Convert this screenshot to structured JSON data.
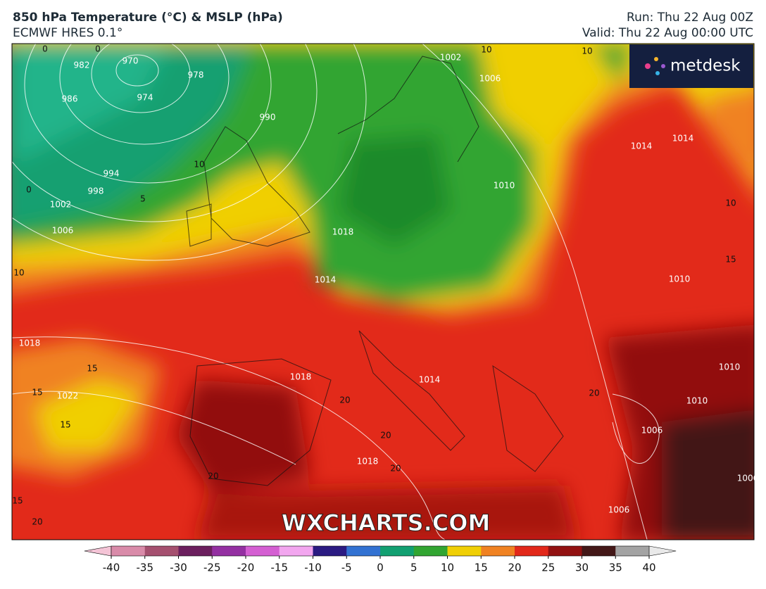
{
  "header": {
    "title": "850 hPa Temperature (°C) & MSLP (hPa)",
    "subtitle": "ECMWF HRES 0.1°",
    "run": "Run: Thu 22 Aug 00Z",
    "valid": "Valid: Thu 22 Aug 00:00 UTC"
  },
  "logo": "metdesk",
  "watermark": "WXCHARTS.COM",
  "isobar_labels": [
    "970",
    "974",
    "978",
    "982",
    "986",
    "990",
    "994",
    "998",
    "1002",
    "1006",
    "1002",
    "1006",
    "1010",
    "1014",
    "1018",
    "1014",
    "1010",
    "1018",
    "1022",
    "1018",
    "1014",
    "1018",
    "1010",
    "1010",
    "1006",
    "1006",
    "1006",
    "1014"
  ],
  "temperature_labels": [
    "0",
    "0",
    "0",
    "10",
    "5",
    "10",
    "10",
    "10",
    "15",
    "10",
    "15",
    "15",
    "15",
    "15",
    "20",
    "20",
    "20",
    "20",
    "20",
    "20"
  ],
  "colorbar": {
    "ticks": [
      -40,
      -35,
      -30,
      -25,
      -20,
      -15,
      -10,
      -5,
      0,
      5,
      10,
      15,
      20,
      25,
      30,
      35,
      40
    ],
    "colors": [
      "#f4c4d6",
      "#d98ba9",
      "#a5506f",
      "#6b1f5e",
      "#9430a2",
      "#d45fd2",
      "#f2a6ef",
      "#2b1b82",
      "#3272d2",
      "#12a071",
      "#31a531",
      "#f0cf05",
      "#f08222",
      "#e2281a",
      "#921111",
      "#431818",
      "#a3a3a3",
      "#e9e9e9"
    ]
  }
}
